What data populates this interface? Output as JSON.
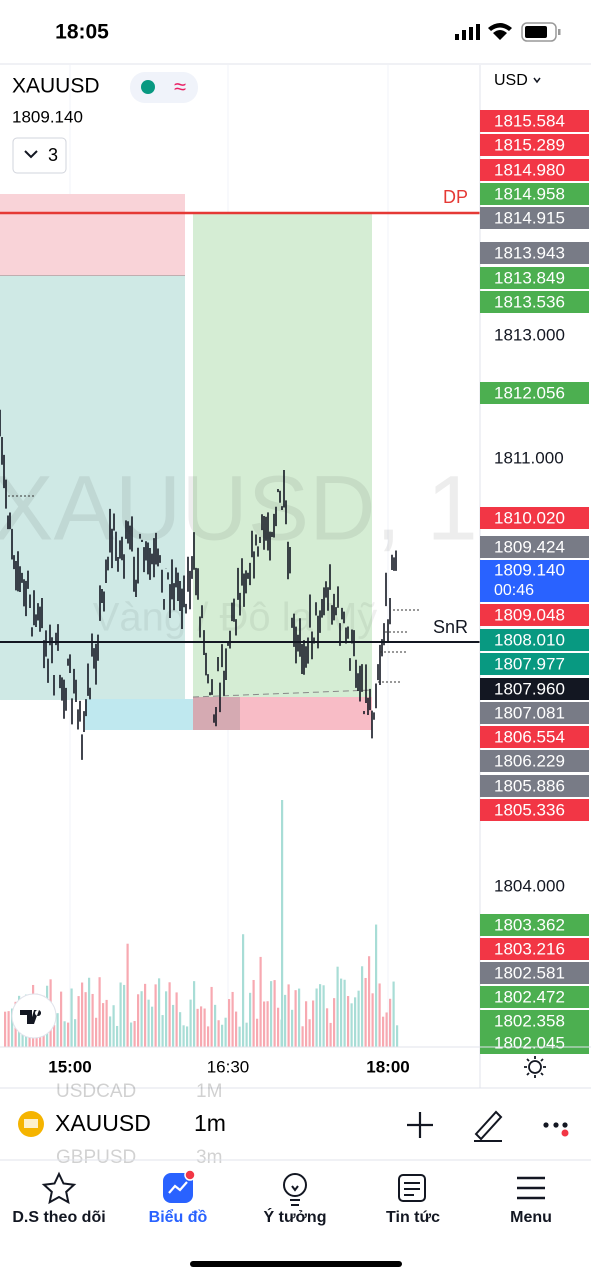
{
  "status_bar": {
    "time": "18:05"
  },
  "symbol_header": {
    "symbol": "XAUUSD",
    "price": "1809.140",
    "indicator_count": "3"
  },
  "price_axis": {
    "currency": "USD",
    "labels": [
      {
        "text": "1815.584",
        "color": "#f23645"
      },
      {
        "text": "1815.289",
        "color": "#f23645"
      },
      {
        "text": "1814.980",
        "color": "#f23645"
      },
      {
        "text": "1814.958",
        "color": "#4caf50"
      },
      {
        "text": "1814.915",
        "color": "#787b86"
      },
      {
        "text": "1813.943",
        "color": "#787b86"
      },
      {
        "text": "1813.849",
        "color": "#4caf50"
      },
      {
        "text": "1813.536",
        "color": "#4caf50"
      },
      {
        "text": "1813.000",
        "color": null
      },
      {
        "text": "1812.056",
        "color": "#4caf50"
      },
      {
        "text": "1811.000",
        "color": null
      },
      {
        "text": "1810.020",
        "color": "#f23645"
      },
      {
        "text": "1809.424",
        "color": "#787b86"
      },
      {
        "text": "1809.140",
        "color": "#2962ff",
        "countdown": "00:46"
      },
      {
        "text": "1809.048",
        "color": "#f23645"
      },
      {
        "text": "1808.010",
        "color": "#089981"
      },
      {
        "text": "1807.977",
        "color": "#089981"
      },
      {
        "text": "1807.960",
        "color": "#131722"
      },
      {
        "text": "1807.081",
        "color": "#787b86"
      },
      {
        "text": "1806.554",
        "color": "#f23645"
      },
      {
        "text": "1806.229",
        "color": "#787b86"
      },
      {
        "text": "1805.886",
        "color": "#787b86"
      },
      {
        "text": "1805.336",
        "color": "#f23645"
      },
      {
        "text": "1804.000",
        "color": null
      },
      {
        "text": "1803.362",
        "color": "#4caf50"
      },
      {
        "text": "1803.216",
        "color": "#f23645"
      },
      {
        "text": "1802.581",
        "color": "#787b86"
      },
      {
        "text": "1802.472",
        "color": "#4caf50"
      },
      {
        "text": "1802.358",
        "color": "#4caf50"
      },
      {
        "text": "1802.045",
        "color": "#4caf50"
      }
    ]
  },
  "chart": {
    "watermark": "XAUUSD, 1",
    "watermark_subtitle": "Vàng / Đô la Mỹ",
    "line_labels": {
      "dp": "DP",
      "snr": "SnR"
    },
    "time_labels": [
      "15:00",
      "16:30",
      "18:00"
    ]
  },
  "toolbar": {
    "symbol": "XAUUSD",
    "interval": "1m",
    "faded_above": "USDCAD",
    "faded_above_interval": "1M",
    "faded_below": "GBPUSD",
    "faded_below_interval": "3m"
  },
  "nav_tabs": [
    "D.S theo dõi",
    "Biểu đồ",
    "Ý tưởng",
    "Tin tức",
    "Menu"
  ]
}
